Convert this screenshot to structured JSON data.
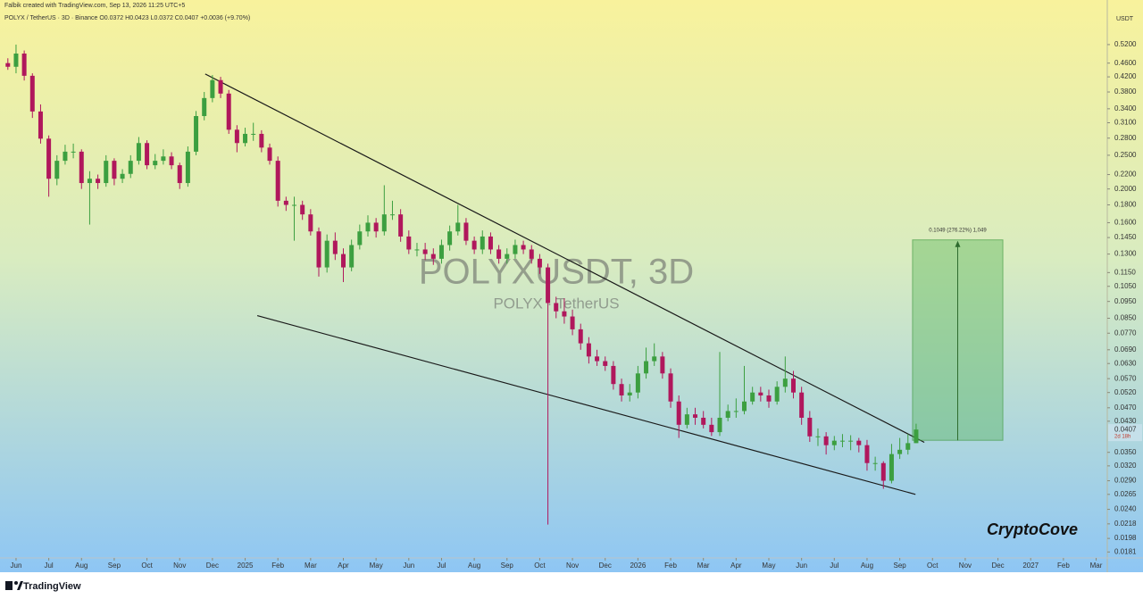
{
  "chart_data": {
    "type": "candlestick",
    "attribution": "Falbik created with TradingView.com, Sep 13, 2026 11:25 UTC+5",
    "legend_line": "POLYX / TetherUS · 3D · Binance  O0.0372 H0.0423 L0.0372 C0.0407 +0.0036 (+9.70%)",
    "watermark_title": "POLYXUSDT, 3D",
    "watermark_subtitle": "POLYX · TetherUS",
    "currency": "USDT",
    "countdown": "2d 18h",
    "signature": "CryptoCove",
    "brand": "TradingView",
    "log_scale": true,
    "up_color": "#3c9f40",
    "down_color": "#b0175c",
    "xlim": [
      -0.49,
      33.34
    ],
    "xticks": [
      {
        "value": 0,
        "label": "Jun"
      },
      {
        "value": 1,
        "label": "Jul"
      },
      {
        "value": 2,
        "label": "Aug"
      },
      {
        "value": 3,
        "label": "Sep"
      },
      {
        "value": 4,
        "label": "Oct"
      },
      {
        "value": 5,
        "label": "Nov"
      },
      {
        "value": 6,
        "label": "Dec"
      },
      {
        "value": 7,
        "label": "2025"
      },
      {
        "value": 8,
        "label": "Feb"
      },
      {
        "value": 9,
        "label": "Mar"
      },
      {
        "value": 10,
        "label": "Apr"
      },
      {
        "value": 11,
        "label": "May"
      },
      {
        "value": 12,
        "label": "Jun"
      },
      {
        "value": 13,
        "label": "Jul"
      },
      {
        "value": 14,
        "label": "Aug"
      },
      {
        "value": 15,
        "label": "Sep"
      },
      {
        "value": 16,
        "label": "Oct"
      },
      {
        "value": 17,
        "label": "Nov"
      },
      {
        "value": 18,
        "label": "Dec"
      },
      {
        "value": 19,
        "label": "2026"
      },
      {
        "value": 20,
        "label": "Feb"
      },
      {
        "value": 21,
        "label": "Mar"
      },
      {
        "value": 22,
        "label": "Apr"
      },
      {
        "value": 23,
        "label": "May"
      },
      {
        "value": 24,
        "label": "Jun"
      },
      {
        "value": 25,
        "label": "Jul"
      },
      {
        "value": 26,
        "label": "Aug"
      },
      {
        "value": 27,
        "label": "Sep"
      },
      {
        "value": 28,
        "label": "Oct"
      },
      {
        "value": 29,
        "label": "Nov"
      },
      {
        "value": 30,
        "label": "Dec"
      },
      {
        "value": 31,
        "label": "2027"
      },
      {
        "value": 32,
        "label": "Feb"
      },
      {
        "value": 33,
        "label": "Mar"
      }
    ],
    "ylim": [
      0.0174,
      0.643
    ],
    "yticks": [
      {
        "value": 0.52,
        "label": "0.5200"
      },
      {
        "value": 0.46,
        "label": "0.4600"
      },
      {
        "value": 0.42,
        "label": "0.4200"
      },
      {
        "value": 0.38,
        "label": "0.3800"
      },
      {
        "value": 0.34,
        "label": "0.3400"
      },
      {
        "value": 0.31,
        "label": "0.3100"
      },
      {
        "value": 0.28,
        "label": "0.2800"
      },
      {
        "value": 0.25,
        "label": "0.2500"
      },
      {
        "value": 0.22,
        "label": "0.2200"
      },
      {
        "value": 0.2,
        "label": "0.2000"
      },
      {
        "value": 0.18,
        "label": "0.1800"
      },
      {
        "value": 0.16,
        "label": "0.1600"
      },
      {
        "value": 0.145,
        "label": "0.1450"
      },
      {
        "value": 0.13,
        "label": "0.1300"
      },
      {
        "value": 0.115,
        "label": "0.1150"
      },
      {
        "value": 0.105,
        "label": "0.1050"
      },
      {
        "value": 0.095,
        "label": "0.0950"
      },
      {
        "value": 0.085,
        "label": "0.0850"
      },
      {
        "value": 0.077,
        "label": "0.0770"
      },
      {
        "value": 0.069,
        "label": "0.0690"
      },
      {
        "value": 0.063,
        "label": "0.0630"
      },
      {
        "value": 0.057,
        "label": "0.0570"
      },
      {
        "value": 0.052,
        "label": "0.0520"
      },
      {
        "value": 0.047,
        "label": "0.0470"
      },
      {
        "value": 0.043,
        "label": "0.0430"
      },
      {
        "value": 0.035,
        "label": "0.0350"
      },
      {
        "value": 0.032,
        "label": "0.0320"
      },
      {
        "value": 0.029,
        "label": "0.0290"
      },
      {
        "value": 0.0265,
        "label": "0.0265"
      },
      {
        "value": 0.024,
        "label": "0.0240"
      },
      {
        "value": 0.0218,
        "label": "0.0218"
      },
      {
        "value": 0.0198,
        "label": "0.0198"
      },
      {
        "value": 0.0181,
        "label": "0.0181"
      }
    ],
    "x": [
      -0.25,
      0,
      0.25,
      0.5,
      0.75,
      1,
      1.25,
      1.5,
      1.75,
      2,
      2.25,
      2.5,
      2.75,
      3,
      3.25,
      3.5,
      3.75,
      4,
      4.25,
      4.5,
      4.75,
      5,
      5.25,
      5.5,
      5.75,
      6,
      6.25,
      6.5,
      6.75,
      7,
      7.25,
      7.5,
      7.75,
      8,
      8.25,
      8.5,
      8.75,
      9,
      9.25,
      9.5,
      9.75,
      10,
      10.25,
      10.5,
      10.75,
      11,
      11.25,
      11.5,
      11.75,
      12,
      12.25,
      12.5,
      12.75,
      13,
      13.25,
      13.5,
      13.75,
      14,
      14.25,
      14.5,
      14.75,
      15,
      15.25,
      15.5,
      15.75,
      16,
      16.25,
      16.5,
      16.75,
      17,
      17.25,
      17.5,
      17.75,
      18,
      18.25,
      18.5,
      18.75,
      19,
      19.25,
      19.5,
      19.75,
      20,
      20.25,
      20.5,
      20.75,
      21,
      21.25,
      21.5,
      21.75,
      22,
      22.25,
      22.5,
      22.75,
      23,
      23.25,
      23.5,
      23.75,
      24,
      24.25,
      24.5,
      24.75,
      25,
      25.25,
      25.5,
      25.75,
      26,
      26.25,
      26.5,
      26.75,
      27,
      27.25,
      27.5
    ],
    "ohlc": [
      [
        0.46,
        0.475,
        0.44,
        0.449
      ],
      [
        0.449,
        0.52,
        0.43,
        0.49
      ],
      [
        0.49,
        0.5,
        0.41,
        0.423
      ],
      [
        0.423,
        0.43,
        0.32,
        0.334
      ],
      [
        0.334,
        0.35,
        0.27,
        0.279
      ],
      [
        0.279,
        0.285,
        0.19,
        0.214
      ],
      [
        0.214,
        0.25,
        0.205,
        0.241
      ],
      [
        0.241,
        0.268,
        0.235,
        0.256
      ],
      [
        0.256,
        0.27,
        0.245,
        0.256
      ],
      [
        0.256,
        0.26,
        0.2,
        0.208
      ],
      [
        0.208,
        0.225,
        0.158,
        0.214
      ],
      [
        0.214,
        0.22,
        0.2,
        0.208
      ],
      [
        0.208,
        0.25,
        0.203,
        0.241
      ],
      [
        0.241,
        0.245,
        0.205,
        0.214
      ],
      [
        0.214,
        0.228,
        0.208,
        0.221
      ],
      [
        0.221,
        0.25,
        0.215,
        0.241
      ],
      [
        0.241,
        0.282,
        0.235,
        0.271
      ],
      [
        0.271,
        0.276,
        0.228,
        0.234
      ],
      [
        0.234,
        0.252,
        0.228,
        0.241
      ],
      [
        0.241,
        0.26,
        0.235,
        0.248
      ],
      [
        0.248,
        0.255,
        0.228,
        0.234
      ],
      [
        0.234,
        0.238,
        0.2,
        0.208
      ],
      [
        0.208,
        0.265,
        0.203,
        0.256
      ],
      [
        0.256,
        0.335,
        0.25,
        0.324
      ],
      [
        0.324,
        0.38,
        0.315,
        0.365
      ],
      [
        0.365,
        0.425,
        0.355,
        0.411
      ],
      [
        0.411,
        0.42,
        0.365,
        0.376
      ],
      [
        0.376,
        0.385,
        0.288,
        0.296
      ],
      [
        0.296,
        0.305,
        0.255,
        0.271
      ],
      [
        0.271,
        0.3,
        0.265,
        0.288
      ],
      [
        0.288,
        0.31,
        0.275,
        0.288
      ],
      [
        0.288,
        0.295,
        0.255,
        0.263
      ],
      [
        0.263,
        0.27,
        0.235,
        0.241
      ],
      [
        0.241,
        0.248,
        0.178,
        0.185
      ],
      [
        0.185,
        0.19,
        0.173,
        0.18
      ],
      [
        0.18,
        0.19,
        0.142,
        0.18
      ],
      [
        0.18,
        0.185,
        0.163,
        0.169
      ],
      [
        0.169,
        0.175,
        0.147,
        0.151
      ],
      [
        0.151,
        0.155,
        0.112,
        0.119
      ],
      [
        0.119,
        0.148,
        0.115,
        0.142
      ],
      [
        0.142,
        0.15,
        0.125,
        0.13
      ],
      [
        0.13,
        0.135,
        0.108,
        0.119
      ],
      [
        0.119,
        0.143,
        0.116,
        0.138
      ],
      [
        0.138,
        0.158,
        0.134,
        0.151
      ],
      [
        0.151,
        0.168,
        0.146,
        0.16
      ],
      [
        0.16,
        0.165,
        0.145,
        0.151
      ],
      [
        0.151,
        0.205,
        0.147,
        0.169
      ],
      [
        0.169,
        0.185,
        0.163,
        0.169
      ],
      [
        0.169,
        0.175,
        0.141,
        0.146
      ],
      [
        0.146,
        0.152,
        0.13,
        0.134
      ],
      [
        0.134,
        0.14,
        0.128,
        0.134
      ],
      [
        0.134,
        0.14,
        0.125,
        0.13
      ],
      [
        0.13,
        0.135,
        0.121,
        0.126
      ],
      [
        0.126,
        0.143,
        0.122,
        0.138
      ],
      [
        0.138,
        0.157,
        0.133,
        0.151
      ],
      [
        0.151,
        0.18,
        0.147,
        0.16
      ],
      [
        0.16,
        0.165,
        0.138,
        0.142
      ],
      [
        0.142,
        0.146,
        0.13,
        0.134
      ],
      [
        0.134,
        0.152,
        0.13,
        0.146
      ],
      [
        0.146,
        0.15,
        0.13,
        0.134
      ],
      [
        0.134,
        0.138,
        0.122,
        0.126
      ],
      [
        0.126,
        0.135,
        0.122,
        0.13
      ],
      [
        0.13,
        0.143,
        0.126,
        0.138
      ],
      [
        0.138,
        0.142,
        0.13,
        0.134
      ],
      [
        0.134,
        0.138,
        0.122,
        0.126
      ],
      [
        0.126,
        0.13,
        0.114,
        0.119
      ],
      [
        0.119,
        0.122,
        0.0217,
        0.094
      ],
      [
        0.094,
        0.098,
        0.085,
        0.089
      ],
      [
        0.089,
        0.097,
        0.082,
        0.086
      ],
      [
        0.086,
        0.09,
        0.076,
        0.079
      ],
      [
        0.079,
        0.082,
        0.069,
        0.072
      ],
      [
        0.072,
        0.075,
        0.063,
        0.066
      ],
      [
        0.066,
        0.069,
        0.062,
        0.064
      ],
      [
        0.064,
        0.066,
        0.06,
        0.062
      ],
      [
        0.062,
        0.064,
        0.053,
        0.055
      ],
      [
        0.055,
        0.057,
        0.049,
        0.051
      ],
      [
        0.051,
        0.055,
        0.049,
        0.052
      ],
      [
        0.052,
        0.062,
        0.05,
        0.059
      ],
      [
        0.059,
        0.07,
        0.057,
        0.064
      ],
      [
        0.064,
        0.072,
        0.062,
        0.066
      ],
      [
        0.066,
        0.068,
        0.057,
        0.059
      ],
      [
        0.059,
        0.061,
        0.047,
        0.049
      ],
      [
        0.049,
        0.051,
        0.0385,
        0.042
      ],
      [
        0.042,
        0.047,
        0.041,
        0.045
      ],
      [
        0.045,
        0.047,
        0.042,
        0.044
      ],
      [
        0.044,
        0.046,
        0.041,
        0.042
      ],
      [
        0.042,
        0.044,
        0.039,
        0.04
      ],
      [
        0.04,
        0.068,
        0.039,
        0.044
      ],
      [
        0.044,
        0.048,
        0.043,
        0.046
      ],
      [
        0.046,
        0.05,
        0.044,
        0.046
      ],
      [
        0.046,
        0.062,
        0.045,
        0.049
      ],
      [
        0.049,
        0.054,
        0.048,
        0.052
      ],
      [
        0.052,
        0.054,
        0.049,
        0.051
      ],
      [
        0.051,
        0.053,
        0.047,
        0.049
      ],
      [
        0.049,
        0.056,
        0.048,
        0.054
      ],
      [
        0.054,
        0.066,
        0.052,
        0.057
      ],
      [
        0.057,
        0.06,
        0.05,
        0.052
      ],
      [
        0.052,
        0.054,
        0.042,
        0.044
      ],
      [
        0.044,
        0.046,
        0.0375,
        0.0389
      ],
      [
        0.0389,
        0.041,
        0.0365,
        0.0389
      ],
      [
        0.0389,
        0.04,
        0.0345,
        0.0367
      ],
      [
        0.0367,
        0.039,
        0.0355,
        0.0378
      ],
      [
        0.0378,
        0.0395,
        0.0362,
        0.0378
      ],
      [
        0.0378,
        0.0392,
        0.0355,
        0.0378
      ],
      [
        0.0378,
        0.0385,
        0.035,
        0.0367
      ],
      [
        0.0367,
        0.038,
        0.031,
        0.0326
      ],
      [
        0.0326,
        0.034,
        0.031,
        0.0326
      ],
      [
        0.0326,
        0.033,
        0.0275,
        0.029
      ],
      [
        0.029,
        0.037,
        0.0285,
        0.0346
      ],
      [
        0.0346,
        0.0385,
        0.0335,
        0.0356
      ],
      [
        0.0356,
        0.0395,
        0.0345,
        0.0372
      ],
      [
        0.0372,
        0.0423,
        0.0372,
        0.0407
      ]
    ],
    "trendlines": [
      {
        "x": [
          5.78,
          27.75
        ],
        "y": [
          0.428,
          0.0374
        ]
      },
      {
        "x": [
          7.37,
          27.48
        ],
        "y": [
          0.0865,
          0.0265
        ]
      }
    ],
    "measure": {
      "x": [
        27.39,
        30.15
      ],
      "y": [
        0.0379,
        0.1428
      ],
      "label": "0.1049 (276.22%) 1,049"
    }
  }
}
